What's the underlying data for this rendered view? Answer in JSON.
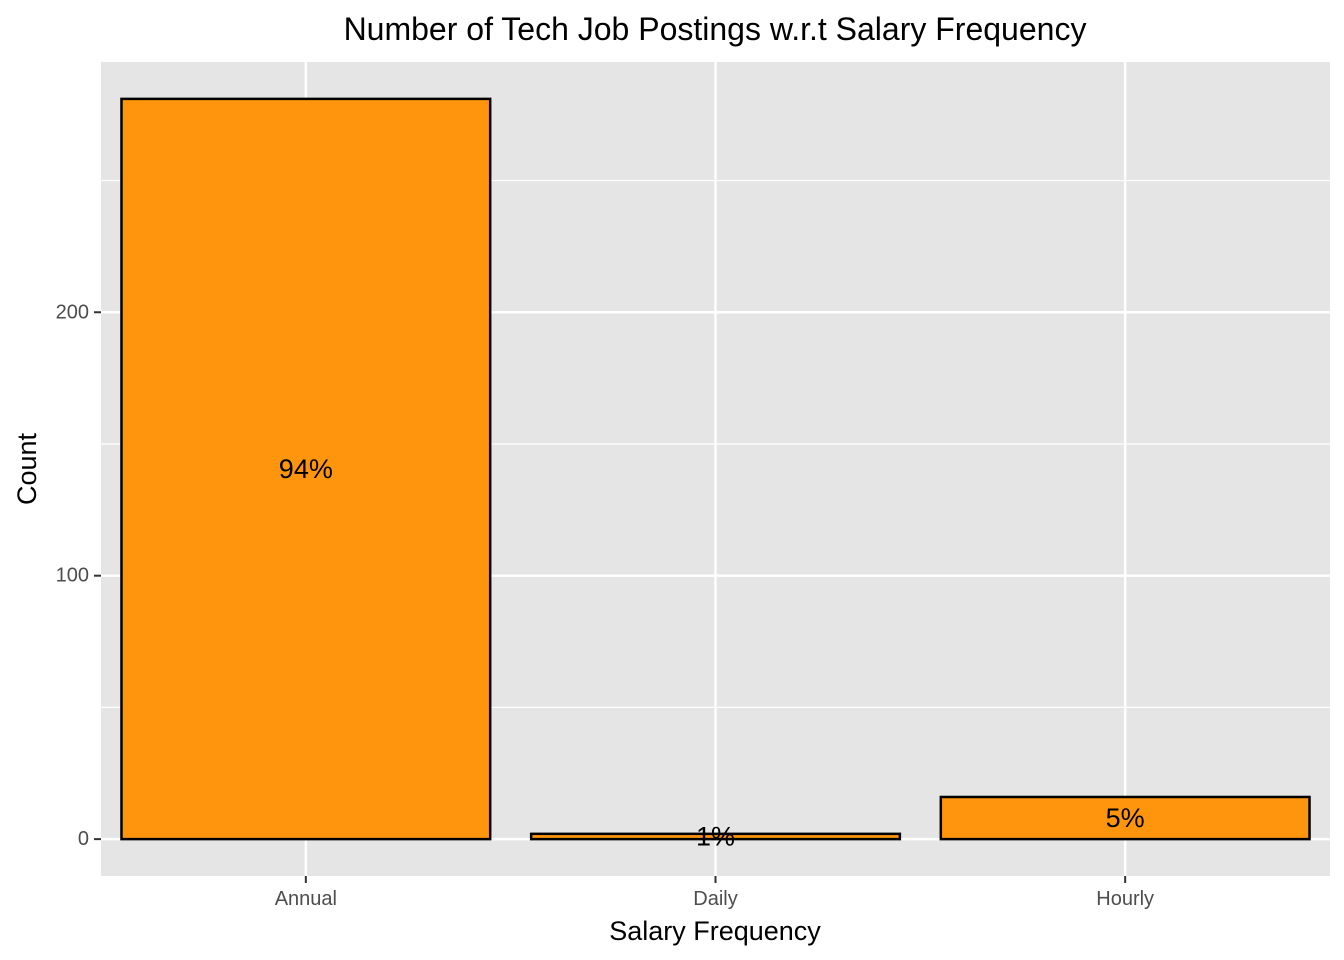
{
  "chart_data": {
    "type": "bar",
    "title": "Number of Tech Job Postings w.r.t Salary Frequency",
    "xlabel": "Salary Frequency",
    "ylabel": "Count",
    "categories": [
      "Annual",
      "Daily",
      "Hourly"
    ],
    "values": [
      281,
      2,
      16
    ],
    "data_labels": [
      "94%",
      "1%",
      "5%"
    ],
    "yticks": [
      "0",
      "100",
      "200"
    ],
    "ylim": [
      -14,
      295
    ],
    "grid": true,
    "legend": "none",
    "colors": {
      "bar_fill": "#FF950D",
      "bar_outline": "#000000",
      "panel_background": "#E5E5E5",
      "grid": "#FFFFFF"
    }
  }
}
